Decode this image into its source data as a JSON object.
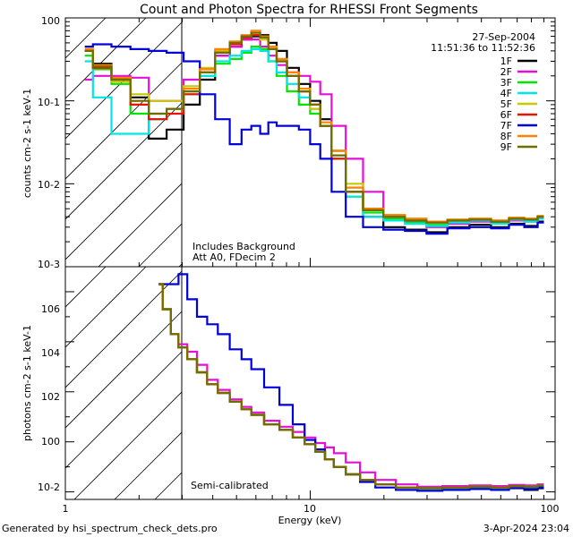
{
  "title": "Count and Photon Spectra for RHESSI Front Segments",
  "date": "27-Sep-2004",
  "time_range": "11:51:36 to 11:52:36",
  "annotations": {
    "top": [
      "Includes Background",
      "Att A0, FDecim 2"
    ],
    "bottom": "Semi-calibrated"
  },
  "footer": {
    "left": "Generated by hsi_spectrum_check_dets.pro",
    "right": "3-Apr-2024 23:04"
  },
  "colors": {
    "1F": "#000000",
    "2F": "#e60fd8",
    "3F": "#00e600",
    "4F": "#00e6e6",
    "5F": "#c8c800",
    "6F": "#e61400",
    "7F": "#0000d9",
    "8F": "#ff8200",
    "9F": "#6e6e00"
  },
  "chart_data": [
    {
      "type": "line",
      "title": "Count and Photon Spectra for RHESSI Front Segments",
      "xlabel": "Energy (keV)",
      "ylabel": "counts cm-2 s-1 keV-1",
      "xscale": "log",
      "yscale": "log",
      "xlim": [
        1,
        100
      ],
      "ylim": [
        0.001,
        1
      ],
      "x_tick_labels": [
        "1",
        "10",
        "100"
      ],
      "y_tick_labels": [
        "10-3",
        "10-2",
        "10-1",
        "100"
      ],
      "shaded_below_keV": 3,
      "x": [
        1.2,
        1.4,
        1.7,
        2.0,
        2.4,
        2.8,
        3.3,
        3.8,
        4.4,
        5.0,
        5.5,
        6.0,
        6.5,
        7.0,
        7.6,
        8.5,
        9.5,
        10.5,
        11.5,
        13,
        15,
        18,
        22,
        27,
        33,
        40,
        50,
        60,
        70,
        80,
        90
      ],
      "series": [
        {
          "name": "1F",
          "values": [
            0.4,
            0.28,
            0.19,
            0.11,
            0.035,
            0.045,
            0.09,
            0.18,
            0.35,
            0.45,
            0.55,
            0.6,
            0.62,
            0.5,
            0.4,
            0.25,
            0.16,
            0.1,
            0.06,
            0.025,
            0.008,
            0.004,
            0.003,
            0.0028,
            0.0026,
            0.003,
            0.0032,
            0.003,
            0.0033,
            0.0031,
            0.0035
          ]
        },
        {
          "name": "2F",
          "values": [
            0.18,
            0.2,
            0.2,
            0.19,
            0.1,
            0.1,
            0.18,
            0.22,
            0.35,
            0.45,
            0.55,
            0.55,
            0.45,
            0.35,
            0.27,
            0.22,
            0.2,
            0.17,
            0.12,
            0.05,
            0.02,
            0.008,
            0.004,
            0.0035,
            0.003,
            0.0033,
            0.0035,
            0.0034,
            0.0036,
            0.0035,
            0.0038
          ]
        },
        {
          "name": "3F",
          "values": [
            0.35,
            0.24,
            0.16,
            0.07,
            0.06,
            0.08,
            0.13,
            0.2,
            0.28,
            0.32,
            0.38,
            0.45,
            0.42,
            0.3,
            0.2,
            0.13,
            0.09,
            0.07,
            0.05,
            0.02,
            0.007,
            0.0045,
            0.0038,
            0.0034,
            0.0032,
            0.0035,
            0.0036,
            0.0034,
            0.0037,
            0.0036,
            0.0039
          ]
        },
        {
          "name": "4F",
          "values": [
            0.3,
            0.11,
            0.04,
            0.04,
            0.06,
            0.08,
            0.12,
            0.2,
            0.3,
            0.35,
            0.4,
            0.42,
            0.4,
            0.3,
            0.22,
            0.16,
            0.11,
            0.08,
            0.05,
            0.02,
            0.007,
            0.004,
            0.0036,
            0.0033,
            0.0031,
            0.0034,
            0.0036,
            0.0033,
            0.0037,
            0.0035,
            0.0038
          ]
        },
        {
          "name": "5F",
          "values": [
            0.4,
            0.25,
            0.17,
            0.12,
            0.1,
            0.1,
            0.15,
            0.25,
            0.4,
            0.5,
            0.6,
            0.62,
            0.55,
            0.45,
            0.3,
            0.2,
            0.13,
            0.08,
            0.05,
            0.025,
            0.01,
            0.005,
            0.0042,
            0.0038,
            0.0035,
            0.0037,
            0.0038,
            0.0036,
            0.0039,
            0.0038,
            0.004
          ]
        },
        {
          "name": "6F",
          "values": [
            0.4,
            0.25,
            0.18,
            0.09,
            0.06,
            0.07,
            0.12,
            0.22,
            0.38,
            0.48,
            0.58,
            0.62,
            0.58,
            0.42,
            0.3,
            0.2,
            0.13,
            0.09,
            0.05,
            0.02,
            0.008,
            0.005,
            0.004,
            0.0036,
            0.0034,
            0.0036,
            0.0037,
            0.0035,
            0.0038,
            0.0037,
            0.004
          ]
        },
        {
          "name": "7F",
          "values": [
            0.45,
            0.48,
            0.45,
            0.42,
            0.4,
            0.38,
            0.3,
            0.12,
            0.06,
            0.03,
            0.045,
            0.05,
            0.04,
            0.055,
            0.05,
            0.05,
            0.045,
            0.03,
            0.02,
            0.008,
            0.004,
            0.003,
            0.0028,
            0.0027,
            0.0025,
            0.0029,
            0.003,
            0.0029,
            0.0032,
            0.003,
            0.0034
          ]
        },
        {
          "name": "8F",
          "values": [
            0.42,
            0.27,
            0.19,
            0.1,
            0.07,
            0.08,
            0.14,
            0.24,
            0.42,
            0.52,
            0.62,
            0.7,
            0.6,
            0.45,
            0.32,
            0.22,
            0.14,
            0.09,
            0.055,
            0.025,
            0.009,
            0.005,
            0.0042,
            0.0038,
            0.0035,
            0.0037,
            0.0038,
            0.0036,
            0.0039,
            0.0038,
            0.0041
          ]
        },
        {
          "name": "9F",
          "values": [
            0.4,
            0.26,
            0.18,
            0.1,
            0.07,
            0.08,
            0.13,
            0.22,
            0.38,
            0.5,
            0.6,
            0.66,
            0.58,
            0.42,
            0.3,
            0.2,
            0.13,
            0.09,
            0.05,
            0.022,
            0.008,
            0.0048,
            0.004,
            0.0036,
            0.0034,
            0.0036,
            0.0037,
            0.0035,
            0.0038,
            0.0037,
            0.004
          ]
        }
      ]
    },
    {
      "type": "line",
      "xlabel": "Energy (keV)",
      "ylabel": "photons cm-2 s-1 keV-1",
      "xscale": "log",
      "yscale": "log",
      "xlim": [
        1,
        100
      ],
      "ylim": [
        0.005,
        10000000
      ],
      "x_tick_labels": [
        "1",
        "10",
        "100"
      ],
      "y_tick_labels": [
        "10-2",
        "100",
        "102",
        "104",
        "106"
      ],
      "shaded_below_keV": 3,
      "x": [
        2.4,
        2.6,
        2.8,
        3.0,
        3.3,
        3.6,
        4.0,
        4.4,
        5.0,
        5.5,
        6.0,
        7.0,
        8.0,
        9.0,
        10,
        11,
        12,
        13,
        15,
        17,
        20,
        25,
        30,
        40,
        50,
        60,
        70,
        80,
        90
      ],
      "series": [
        {
          "name": "1F",
          "values": [
            2000000,
            200000,
            20000,
            6000,
            2000,
            600,
            200,
            90,
            40,
            20,
            12,
            5,
            3,
            1.5,
            0.8,
            0.4,
            0.2,
            0.1,
            0.05,
            0.03,
            0.02,
            0.015,
            0.012,
            0.013,
            0.014,
            0.013,
            0.015,
            0.012,
            0.014
          ]
        },
        {
          "name": "2F",
          "values": [
            2000000,
            200000,
            20000,
            8000,
            4000,
            1200,
            300,
            120,
            50,
            25,
            15,
            7,
            4,
            2.5,
            1.5,
            0.9,
            0.6,
            0.35,
            0.15,
            0.06,
            0.03,
            0.02,
            0.016,
            0.017,
            0.018,
            0.017,
            0.019,
            0.018,
            0.02
          ]
        },
        {
          "name": "3F",
          "values": [
            2000000,
            200000,
            20000,
            6000,
            2000,
            600,
            200,
            90,
            40,
            20,
            12,
            5,
            3,
            1.5,
            0.8,
            0.4,
            0.2,
            0.1,
            0.05,
            0.03,
            0.02,
            0.015,
            0.014,
            0.015,
            0.016,
            0.015,
            0.017,
            0.016,
            0.018
          ]
        },
        {
          "name": "4F",
          "values": [
            2000000,
            200000,
            20000,
            6000,
            2000,
            600,
            200,
            90,
            40,
            20,
            12,
            5,
            3,
            1.5,
            0.8,
            0.4,
            0.2,
            0.1,
            0.05,
            0.03,
            0.02,
            0.015,
            0.013,
            0.014,
            0.015,
            0.014,
            0.016,
            0.015,
            0.017
          ]
        },
        {
          "name": "5F",
          "values": [
            2000000,
            200000,
            20000,
            6000,
            2000,
            600,
            200,
            90,
            40,
            20,
            12,
            5,
            3,
            1.5,
            0.8,
            0.4,
            0.2,
            0.1,
            0.05,
            0.03,
            0.02,
            0.015,
            0.014,
            0.015,
            0.016,
            0.015,
            0.017,
            0.016,
            0.018
          ]
        },
        {
          "name": "6F",
          "values": [
            2000000,
            200000,
            20000,
            6000,
            2000,
            600,
            200,
            90,
            40,
            20,
            12,
            5,
            3,
            1.5,
            0.8,
            0.4,
            0.2,
            0.1,
            0.05,
            0.03,
            0.02,
            0.015,
            0.014,
            0.015,
            0.016,
            0.015,
            0.017,
            0.016,
            0.018
          ]
        },
        {
          "name": "7F",
          "values": [
            2000000,
            2000000,
            2000000,
            5000000,
            500000,
            100000,
            50000,
            20000,
            5000,
            2000,
            800,
            150,
            30,
            5,
            1.2,
            0.5,
            0.2,
            0.1,
            0.05,
            0.025,
            0.015,
            0.012,
            0.011,
            0.012,
            0.013,
            0.012,
            0.014,
            0.013,
            0.015
          ]
        },
        {
          "name": "8F",
          "values": [
            2000000,
            200000,
            20000,
            6000,
            2000,
            600,
            200,
            90,
            40,
            20,
            12,
            5,
            3,
            1.5,
            0.8,
            0.4,
            0.2,
            0.1,
            0.05,
            0.03,
            0.02,
            0.015,
            0.014,
            0.015,
            0.016,
            0.015,
            0.017,
            0.016,
            0.018
          ]
        },
        {
          "name": "9F",
          "values": [
            2000000,
            200000,
            20000,
            6000,
            2000,
            600,
            200,
            90,
            40,
            20,
            12,
            5,
            3,
            1.5,
            0.8,
            0.4,
            0.2,
            0.1,
            0.05,
            0.03,
            0.02,
            0.015,
            0.014,
            0.015,
            0.016,
            0.015,
            0.017,
            0.016,
            0.018
          ]
        }
      ]
    }
  ]
}
